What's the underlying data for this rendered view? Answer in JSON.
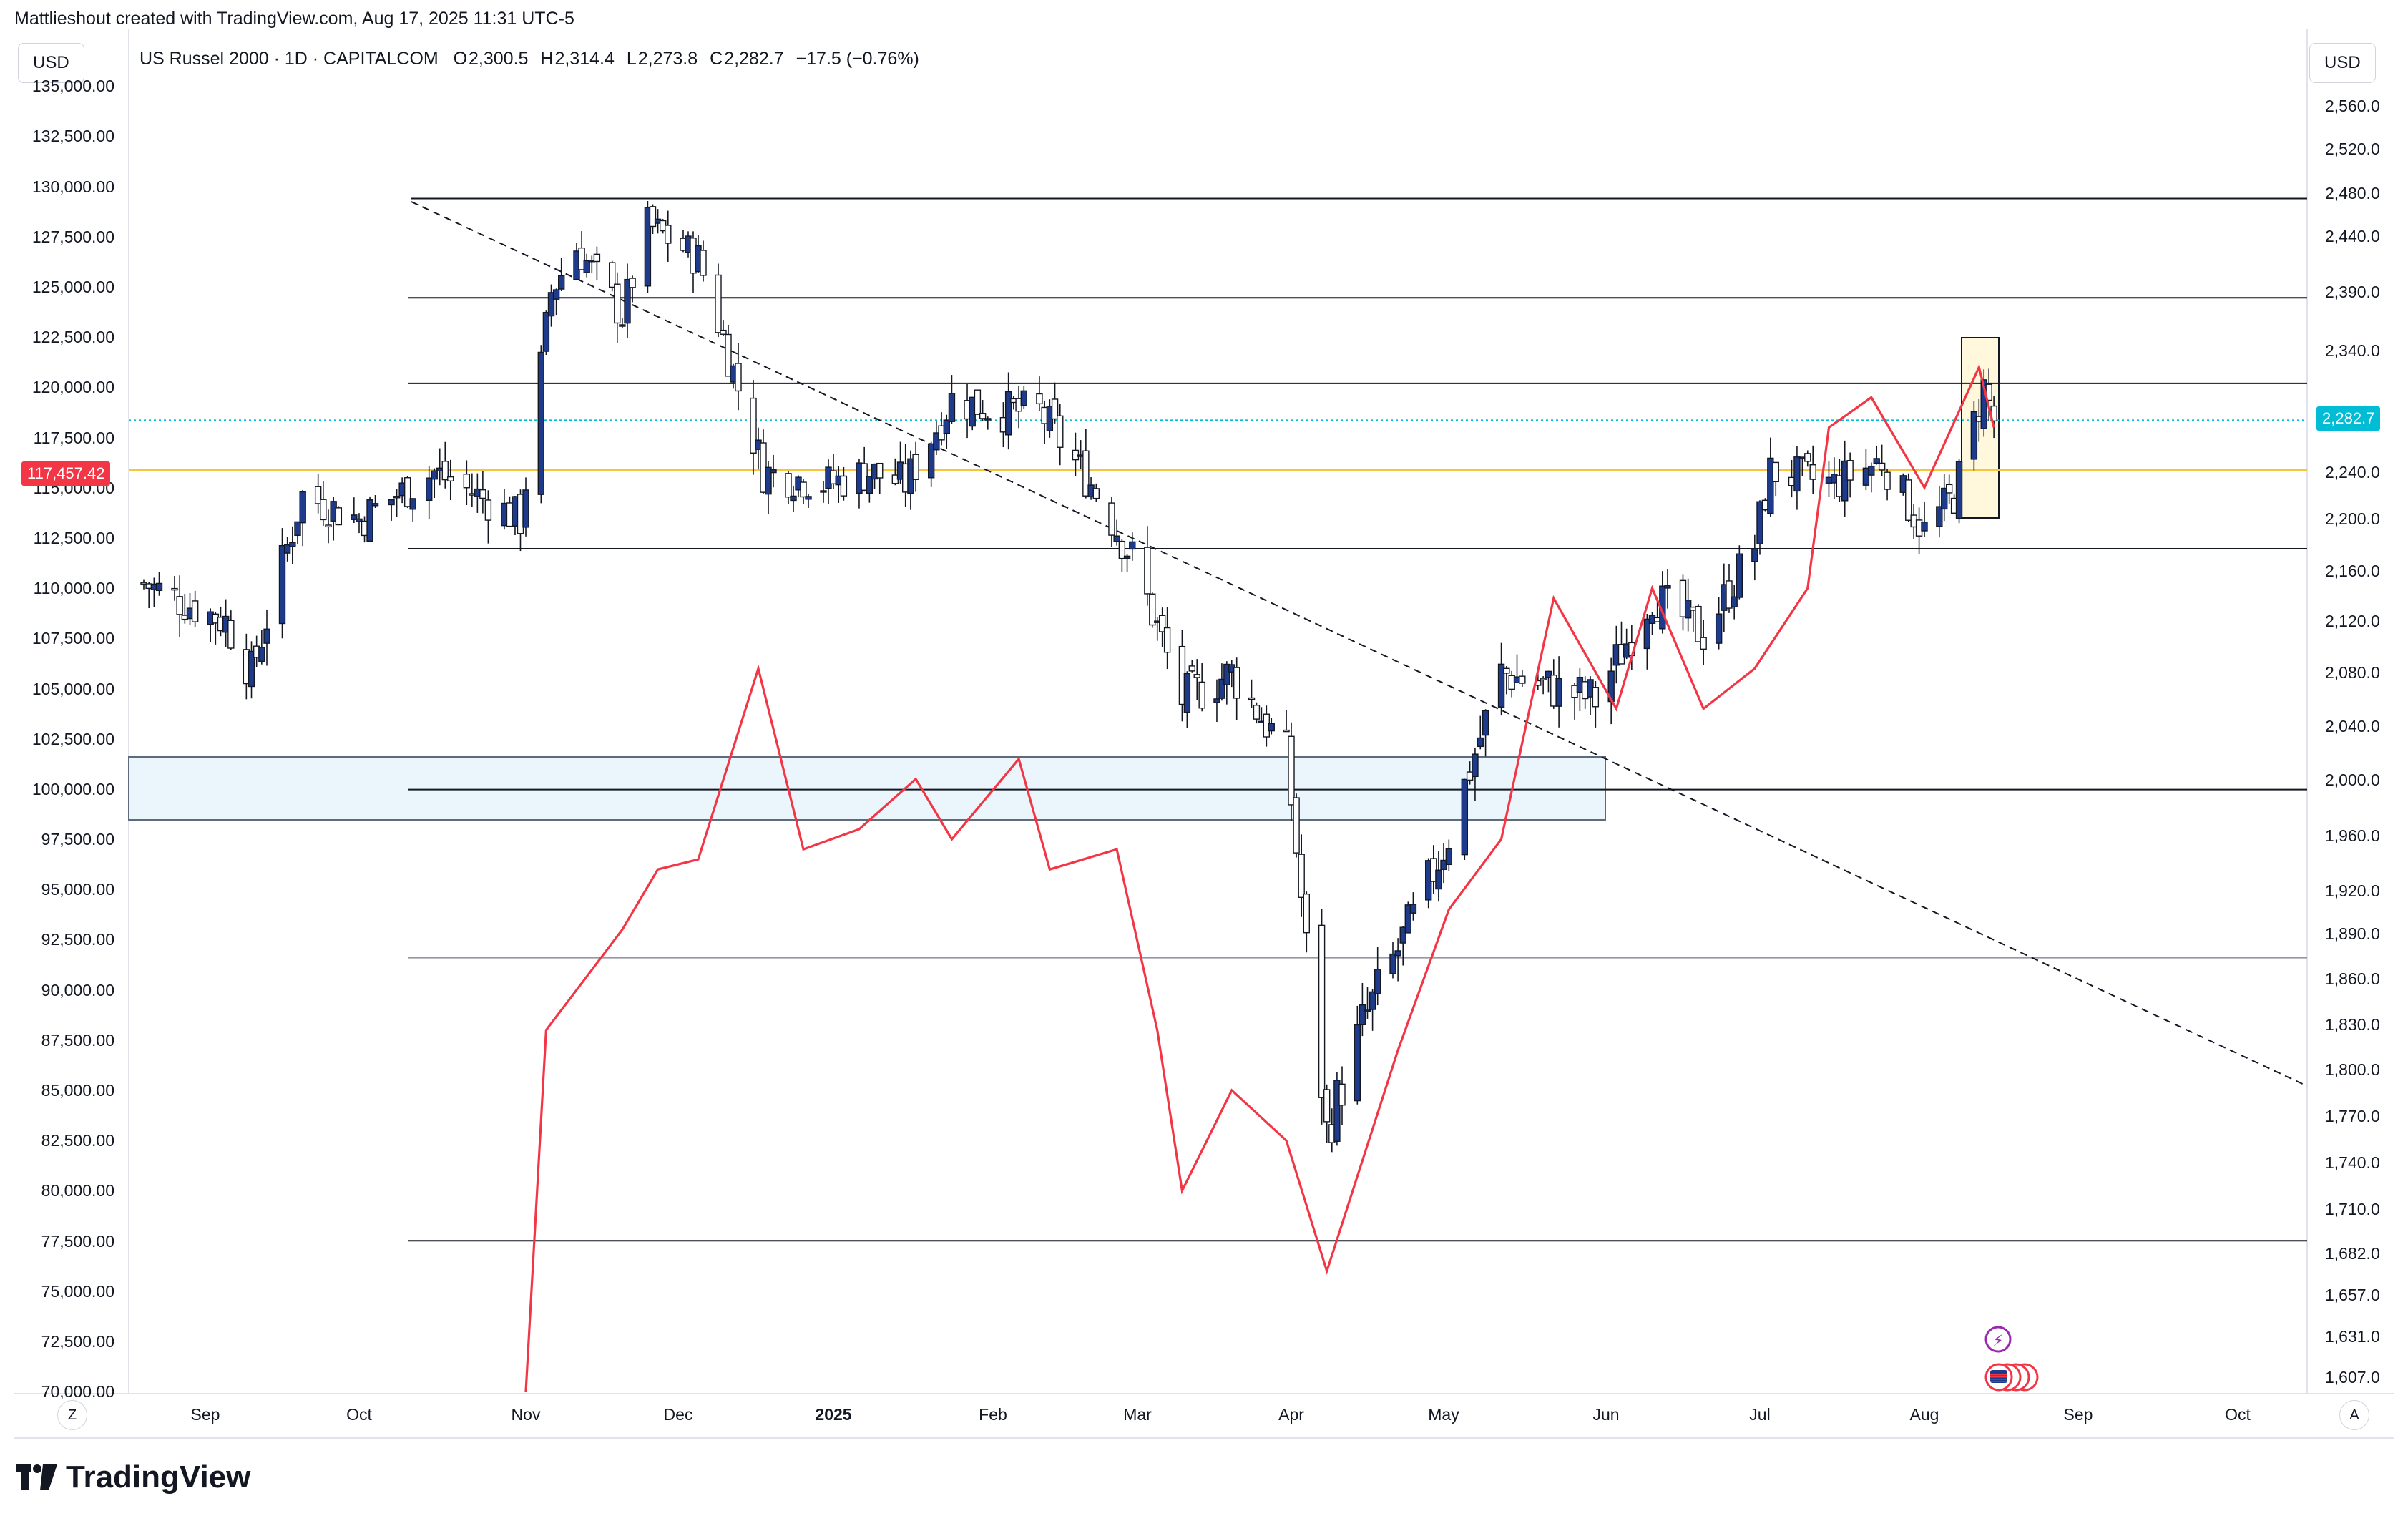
{
  "header": {
    "text": "Mattlieshout created with TradingView.com, Aug 17, 2025 11:31 UTC-5"
  },
  "left_currency": "USD",
  "right_currency": "USD",
  "legend": {
    "symbol": "US Russel 2000 · 1D · CAPITALCOM",
    "o_label": "O",
    "o_value": "2,300.5",
    "h_label": "H",
    "h_value": "2,314.4",
    "l_label": "L",
    "l_value": "2,273.8",
    "c_label": "C",
    "c_value": "2,282.7",
    "change": "−17.5 (−0.76%)"
  },
  "tags": {
    "left_price": "117,457.42",
    "right_price": "2,282.7"
  },
  "corner": {
    "left": "Z",
    "right": "A"
  },
  "footer": {
    "brand": "TradingView"
  },
  "colors": {
    "candle_up": "#2962ff",
    "candle_up_fill": "#ffffff",
    "candle_body_dark": "#1e3a8a",
    "red_line": "#f23645",
    "current_price": "#00bcd4",
    "left_price_tag": "#f23645",
    "orange_line": "#f7c53d",
    "zone_fill": "#eaf6fb",
    "highlight_box": "#fff8dc"
  },
  "chart_data": {
    "type": "candlestick",
    "title": "US Russel 2000 · 1D · CAPITALCOM",
    "x_ticks": [
      "Sep",
      "Oct",
      "Nov",
      "Dec",
      "2025",
      "Feb",
      "Mar",
      "Apr",
      "May",
      "Jun",
      "Jul",
      "Aug",
      "Sep",
      "Oct"
    ],
    "left_axis": {
      "ticks": [
        "135,000.00",
        "132,500.00",
        "130,000.00",
        "127,500.00",
        "125,000.00",
        "122,500.00",
        "120,000.00",
        "117,500.00",
        "115,000.00",
        "112,500.00",
        "110,000.00",
        "107,500.00",
        "105,000.00",
        "102,500.00",
        "100,000.00",
        "97,500.00",
        "95,000.00",
        "92,500.00",
        "90,000.00",
        "87,500.00",
        "85,000.00",
        "82,500.00",
        "80,000.00",
        "77,500.00",
        "75,000.00",
        "72,500.00",
        "70,000.00"
      ],
      "ylim": [
        69900,
        137500
      ]
    },
    "right_axis": {
      "ticks": [
        "2,560.0",
        "2,520.0",
        "2,480.0",
        "2,440.0",
        "2,390.0",
        "2,340.0",
        "2,240.0",
        "2,200.0",
        "2,160.0",
        "2,120.0",
        "2,080.0",
        "2,040.0",
        "2,000.0",
        "1,960.0",
        "1,920.0",
        "1,890.0",
        "1,860.0",
        "1,830.0",
        "1,800.0",
        "1,770.0",
        "1,740.0",
        "1,710.0",
        "1,682.0",
        "1,657.0",
        "1,631.0",
        "1,607.0"
      ]
    },
    "last_ohlc": {
      "open": 2300.5,
      "high": 2314.4,
      "low": 2273.8,
      "close": 2282.7,
      "change": -17.5,
      "change_pct": -0.76
    },
    "price_close_series": [
      {
        "date": "2024-08-20",
        "close": 2150
      },
      {
        "date": "2024-09-05",
        "close": 2120
      },
      {
        "date": "2024-09-10",
        "close": 2080
      },
      {
        "date": "2024-09-20",
        "close": 2220
      },
      {
        "date": "2024-10-01",
        "close": 2200
      },
      {
        "date": "2024-10-15",
        "close": 2240
      },
      {
        "date": "2024-10-31",
        "close": 2200
      },
      {
        "date": "2024-11-06",
        "close": 2390
      },
      {
        "date": "2024-11-11",
        "close": 2430
      },
      {
        "date": "2024-11-20",
        "close": 2370
      },
      {
        "date": "2024-11-25",
        "close": 2450
      },
      {
        "date": "2024-12-05",
        "close": 2420
      },
      {
        "date": "2024-12-18",
        "close": 2240
      },
      {
        "date": "2024-12-31",
        "close": 2230
      },
      {
        "date": "2025-01-08",
        "close": 2240
      },
      {
        "date": "2025-01-15",
        "close": 2230
      },
      {
        "date": "2025-01-24",
        "close": 2300
      },
      {
        "date": "2025-02-03",
        "close": 2290
      },
      {
        "date": "2025-02-10",
        "close": 2290
      },
      {
        "date": "2025-02-20",
        "close": 2230
      },
      {
        "date": "2025-02-28",
        "close": 2170
      },
      {
        "date": "2025-03-10",
        "close": 2060
      },
      {
        "date": "2025-03-20",
        "close": 2080
      },
      {
        "date": "2025-03-31",
        "close": 2020
      },
      {
        "date": "2025-04-04",
        "close": 1880
      },
      {
        "date": "2025-04-08",
        "close": 1760
      },
      {
        "date": "2025-04-15",
        "close": 1830
      },
      {
        "date": "2025-04-25",
        "close": 1900
      },
      {
        "date": "2025-05-02",
        "close": 1960
      },
      {
        "date": "2025-05-12",
        "close": 2080
      },
      {
        "date": "2025-05-20",
        "close": 2070
      },
      {
        "date": "2025-05-30",
        "close": 2060
      },
      {
        "date": "2025-06-10",
        "close": 2140
      },
      {
        "date": "2025-06-20",
        "close": 2110
      },
      {
        "date": "2025-06-30",
        "close": 2180
      },
      {
        "date": "2025-07-03",
        "close": 2240
      },
      {
        "date": "2025-07-15",
        "close": 2230
      },
      {
        "date": "2025-07-24",
        "close": 2250
      },
      {
        "date": "2025-08-01",
        "close": 2190
      },
      {
        "date": "2025-08-07",
        "close": 2220
      },
      {
        "date": "2025-08-13",
        "close": 2310
      },
      {
        "date": "2025-08-15",
        "close": 2282.7
      }
    ],
    "overlay_series": {
      "color": "red",
      "points": [
        {
          "date": "2024-11-01",
          "value": 70000
        },
        {
          "date": "2024-11-05",
          "value": 88000
        },
        {
          "date": "2024-11-11",
          "value": 90000
        },
        {
          "date": "2024-11-20",
          "value": 93000
        },
        {
          "date": "2024-11-27",
          "value": 96000
        },
        {
          "date": "2024-12-05",
          "value": 96500
        },
        {
          "date": "2024-12-17",
          "value": 106000
        },
        {
          "date": "2024-12-26",
          "value": 97000
        },
        {
          "date": "2025-01-06",
          "value": 98000
        },
        {
          "date": "2025-01-17",
          "value": 100500
        },
        {
          "date": "2025-01-24",
          "value": 97500
        },
        {
          "date": "2025-02-06",
          "value": 101500
        },
        {
          "date": "2025-02-12",
          "value": 96000
        },
        {
          "date": "2025-02-25",
          "value": 97000
        },
        {
          "date": "2025-03-05",
          "value": 88000
        },
        {
          "date": "2025-03-10",
          "value": 80000
        },
        {
          "date": "2025-03-20",
          "value": 85000
        },
        {
          "date": "2025-03-31",
          "value": 82500
        },
        {
          "date": "2025-04-08",
          "value": 76000
        },
        {
          "date": "2025-04-22",
          "value": 87000
        },
        {
          "date": "2025-05-02",
          "value": 94000
        },
        {
          "date": "2025-05-12",
          "value": 97500
        },
        {
          "date": "2025-05-22",
          "value": 109500
        },
        {
          "date": "2025-06-03",
          "value": 104000
        },
        {
          "date": "2025-06-10",
          "value": 110000
        },
        {
          "date": "2025-06-20",
          "value": 104000
        },
        {
          "date": "2025-06-30",
          "value": 106000
        },
        {
          "date": "2025-07-10",
          "value": 110000
        },
        {
          "date": "2025-07-14",
          "value": 118000
        },
        {
          "date": "2025-07-22",
          "value": 119500
        },
        {
          "date": "2025-08-01",
          "value": 115000
        },
        {
          "date": "2025-08-12",
          "value": 121000
        },
        {
          "date": "2025-08-15",
          "value": 118000
        }
      ]
    },
    "horizontal_lines": [
      2475,
      2385,
      2313,
      2177,
      1993,
      1874,
      1690
    ],
    "legend_text": "2,282.7",
    "grid": false
  }
}
